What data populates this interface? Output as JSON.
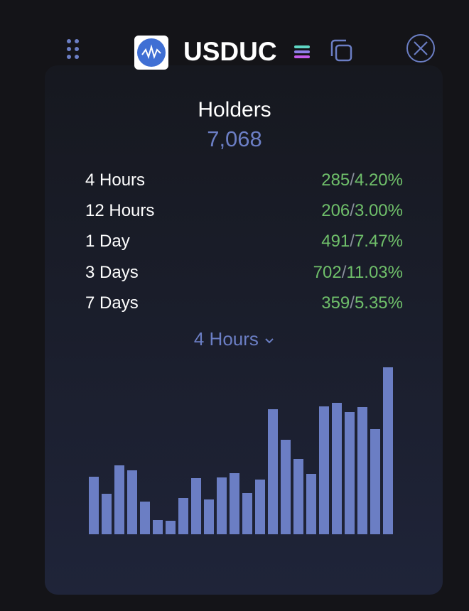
{
  "header": {
    "title": "USDUC"
  },
  "holders": {
    "label": "Holders",
    "value": "7,068"
  },
  "table": {
    "rows": [
      {
        "label": "4 Hours",
        "count": "285",
        "percent": "4.20%"
      },
      {
        "label": "12 Hours",
        "count": "206",
        "percent": "3.00%"
      },
      {
        "label": "1 Day",
        "count": "491",
        "percent": "7.47%"
      },
      {
        "label": "3 Days",
        "count": "702",
        "percent": "11.03%"
      },
      {
        "label": "7 Days",
        "count": "359",
        "percent": "5.35%"
      }
    ]
  },
  "dropdown": {
    "label": "4 Hours"
  },
  "chart_data": {
    "type": "bar",
    "values": [
      81,
      57,
      97,
      90,
      46,
      20,
      19,
      51,
      79,
      49,
      80,
      86,
      58,
      77,
      176,
      133,
      106,
      85,
      180,
      185,
      172,
      179,
      148,
      235
    ],
    "color": "#6b7ec4",
    "ylim": [
      0,
      240
    ]
  }
}
